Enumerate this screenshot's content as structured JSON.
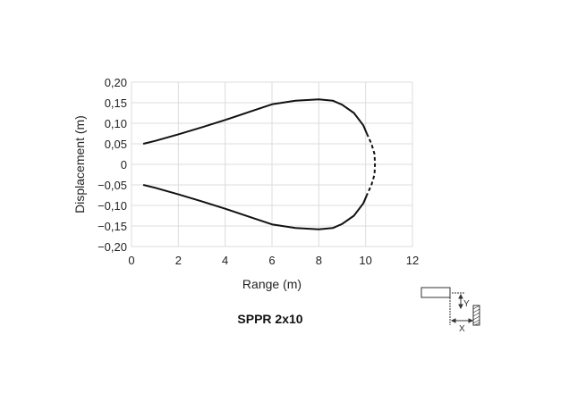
{
  "chart_data": {
    "type": "line",
    "title": "SPPR 2x10",
    "xlabel": "Range (m)",
    "ylabel": "Displacement (m)",
    "xlim": [
      0,
      12
    ],
    "ylim": [
      -0.2,
      0.2
    ],
    "xticks": [
      "0",
      "2",
      "4",
      "6",
      "8",
      "10",
      "12"
    ],
    "yticks": [
      "0,20",
      "0,15",
      "0,10",
      "0,05",
      "0",
      "−0,05",
      "−0,10",
      "−0,15",
      "−0,20"
    ],
    "grid": true,
    "line_color": "#111111",
    "series": [
      {
        "style": "solid",
        "points": [
          [
            0.5,
            0.05
          ],
          [
            1,
            0.057
          ],
          [
            2,
            0.073
          ],
          [
            3,
            0.09
          ],
          [
            4,
            0.108
          ],
          [
            5,
            0.127
          ],
          [
            6,
            0.146
          ],
          [
            7,
            0.155
          ],
          [
            8,
            0.158
          ],
          [
            8.6,
            0.155
          ],
          [
            9,
            0.145
          ],
          [
            9.5,
            0.125
          ],
          [
            9.9,
            0.095
          ],
          [
            10.05,
            0.075
          ]
        ]
      },
      {
        "style": "dashed",
        "points": [
          [
            10.05,
            0.075
          ],
          [
            10.25,
            0.05
          ],
          [
            10.38,
            0.025
          ],
          [
            10.4,
            0
          ],
          [
            10.38,
            -0.025
          ],
          [
            10.25,
            -0.05
          ],
          [
            10.05,
            -0.075
          ]
        ]
      },
      {
        "style": "solid",
        "points": [
          [
            10.05,
            -0.075
          ],
          [
            9.9,
            -0.095
          ],
          [
            9.5,
            -0.125
          ],
          [
            9,
            -0.145
          ],
          [
            8.6,
            -0.155
          ],
          [
            8,
            -0.158
          ],
          [
            7,
            -0.155
          ],
          [
            6,
            -0.146
          ],
          [
            5,
            -0.127
          ],
          [
            4,
            -0.108
          ],
          [
            3,
            -0.09
          ],
          [
            2,
            -0.073
          ],
          [
            1,
            -0.057
          ],
          [
            0.5,
            -0.05
          ]
        ]
      }
    ]
  },
  "diagram": {
    "y_label": "Y",
    "x_label": "X"
  }
}
